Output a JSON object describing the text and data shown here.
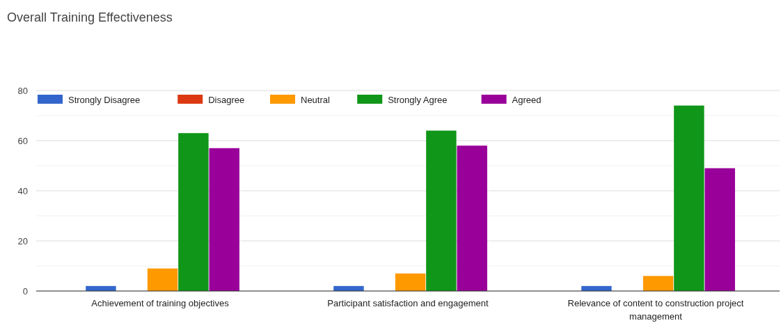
{
  "chart_data": {
    "type": "bar",
    "title": "Overall Training Effectiveness",
    "categories": [
      "Achievement of training objectives",
      "Participant satisfaction and engagement",
      "Relevance of content to construction project management"
    ],
    "series": [
      {
        "name": "Strongly Disagree",
        "color": "#3366cc",
        "values": [
          2,
          2,
          2
        ]
      },
      {
        "name": "Disagree",
        "color": "#dc3912",
        "values": [
          0,
          0,
          0
        ]
      },
      {
        "name": "Neutral",
        "color": "#ff9900",
        "values": [
          9,
          7,
          6
        ]
      },
      {
        "name": "Strongly Agree",
        "color": "#109618",
        "values": [
          63,
          64,
          74
        ]
      },
      {
        "name": "Agreed",
        "color": "#990099",
        "values": [
          57,
          58,
          49
        ]
      }
    ],
    "ylim": [
      0,
      80
    ],
    "yticks": [
      0,
      {
        "value": 10,
        "label": null
      },
      20,
      {
        "value": 30,
        "label": null
      },
      40,
      {
        "value": 50,
        "label": null
      },
      60,
      {
        "value": 70,
        "label": null
      },
      80
    ],
    "grid": true,
    "legend": "top left"
  }
}
